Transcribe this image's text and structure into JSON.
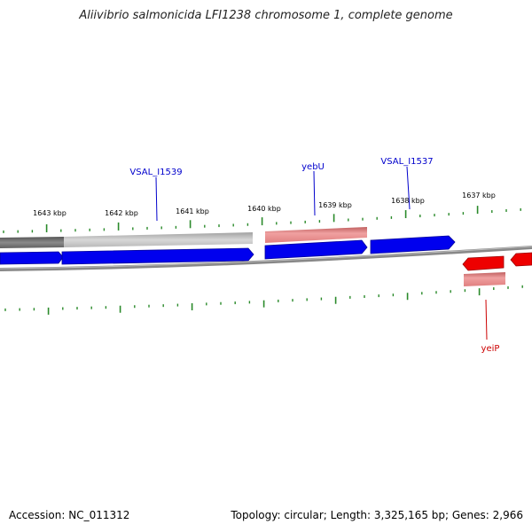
{
  "title": "Aliivibrio salmonicida LFI1238 chromosome 1, complete genome",
  "footer": {
    "accession": "Accession: NC_011312",
    "summary": "Topology: circular; Length: 3,325,165 bp; Genes: 2,966"
  },
  "ruler": {
    "ticks": [
      {
        "label": "1643 kbp",
        "kbp": 1643
      },
      {
        "label": "1642 kbp",
        "kbp": 1642
      },
      {
        "label": "1641 kbp",
        "kbp": 1641
      },
      {
        "label": "1640 kbp",
        "kbp": 1640
      },
      {
        "label": "1639 kbp",
        "kbp": 1639
      },
      {
        "label": "1638 kbp",
        "kbp": 1638
      },
      {
        "label": "1637 kbp",
        "kbp": 1637
      }
    ]
  },
  "gene_labels": [
    {
      "text": "VSAL_I1539",
      "strand": "forward",
      "color": "#0000cc"
    },
    {
      "text": "yebU",
      "strand": "forward",
      "color": "#0000cc"
    },
    {
      "text": "VSAL_I1537",
      "strand": "forward",
      "color": "#0000cc"
    },
    {
      "text": "yeiP",
      "strand": "reverse",
      "color": "#cc0000"
    }
  ],
  "colors": {
    "forward_gene": "#0000ee",
    "reverse_gene": "#ee0000",
    "forward_feature_light": "#c8c8c8",
    "forward_feature_dark": "#6e6e6e",
    "highlight_feature": "#ee8888",
    "backbone": "#888888",
    "tick": "#2a8a2a"
  }
}
